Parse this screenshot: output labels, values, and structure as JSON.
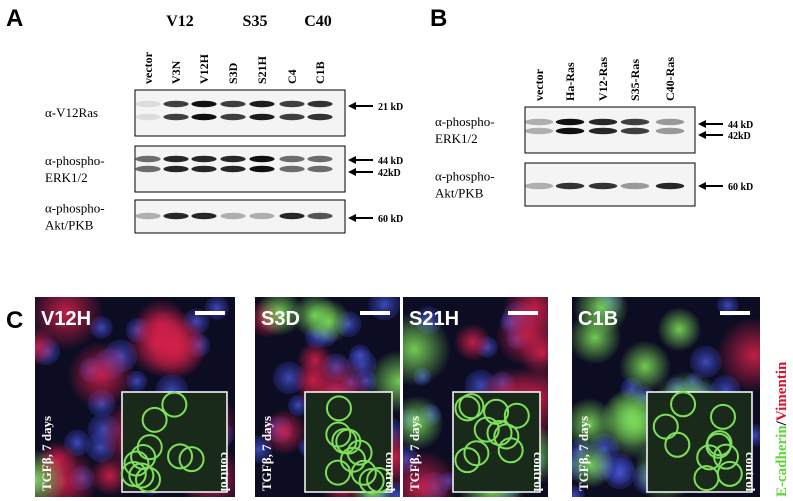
{
  "panel_a": {
    "label": "A",
    "groups": [
      "V12",
      "S35",
      "C40"
    ],
    "lanes": [
      "vector",
      "V3N",
      "V12H",
      "S3D",
      "S21H",
      "C4",
      "C1B"
    ],
    "blots": [
      {
        "label": [
          "α-V12Ras"
        ],
        "markers": [
          "21 kD"
        ]
      },
      {
        "label": [
          "α-phospho-",
          "ERK1/2"
        ],
        "markers": [
          "44 kD",
          "42kD"
        ]
      },
      {
        "label": [
          "α-phospho-",
          "Akt/PKB"
        ],
        "markers": [
          "60 kD"
        ]
      }
    ]
  },
  "panel_b": {
    "label": "B",
    "lanes": [
      "vector",
      "Ha-Ras",
      "V12-Ras",
      "S35-Ras",
      "C40-Ras"
    ],
    "blots": [
      {
        "label": [
          "α-phospho-",
          "ERK1/2"
        ],
        "markers": [
          "44 kD",
          "42kD"
        ]
      },
      {
        "label": [
          "α-phospho-",
          "Akt/PKB"
        ],
        "markers": [
          "60 kD"
        ]
      }
    ]
  },
  "panel_c": {
    "label": "C",
    "images": [
      {
        "name": "V12H",
        "treatment": "TGFβ, 7 days",
        "inset": "control"
      },
      {
        "name": "S3D",
        "treatment": "TGFβ, 7 days",
        "inset": "control"
      },
      {
        "name": "S21H",
        "treatment": "TGFβ, 7 days",
        "inset": "control"
      },
      {
        "name": "C1B",
        "treatment": "TGFβ, 7 days",
        "inset": "control"
      }
    ],
    "legend": [
      "E-cadherin",
      "/",
      "Vimentin"
    ]
  }
}
